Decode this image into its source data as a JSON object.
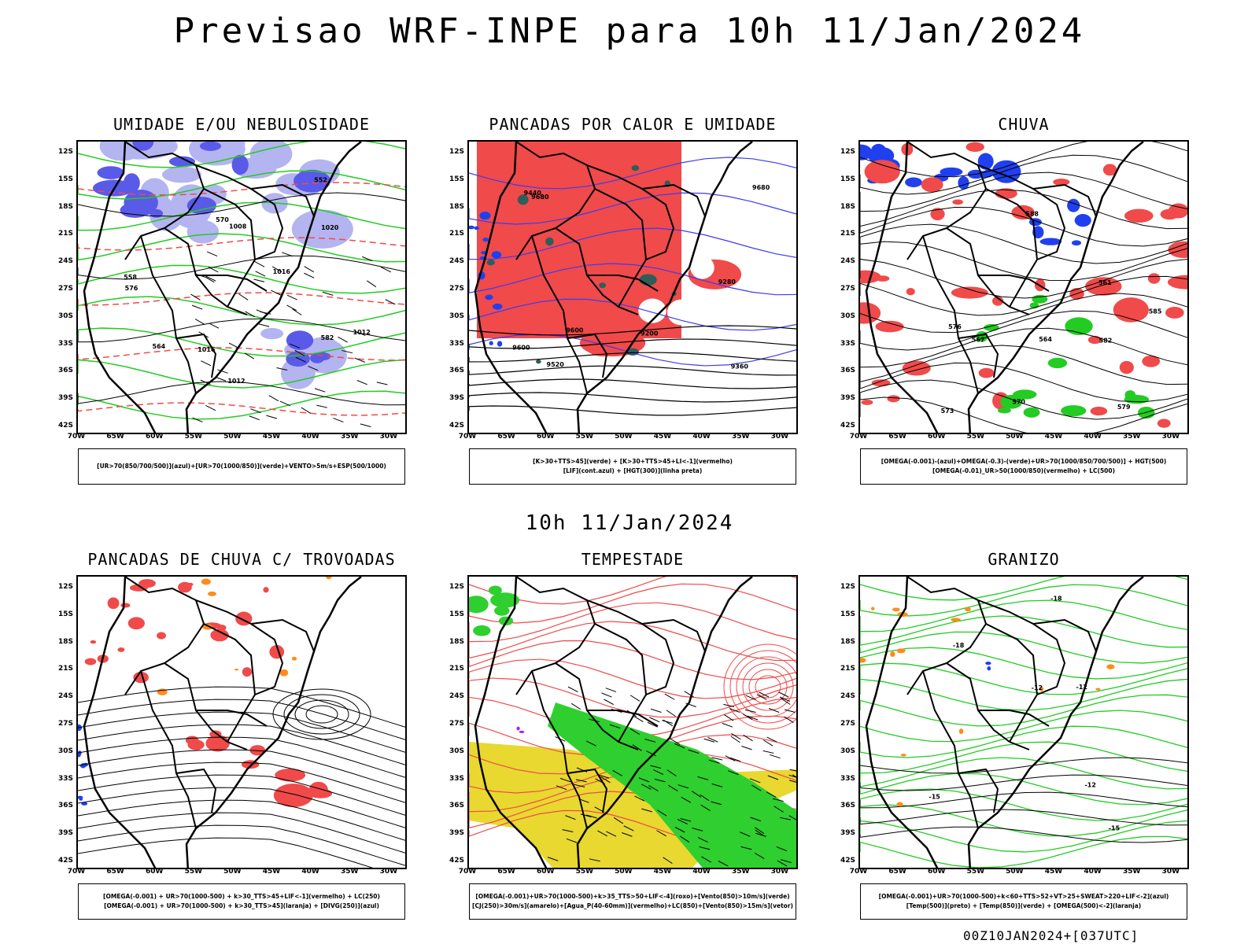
{
  "title": "Previsao WRF-INPE  para 10h 11/Jan/2024",
  "mid_title": "10h 11/Jan/2024",
  "footer": "00Z10JAN2024+[037UTC]",
  "latitude_labels": [
    "12S",
    "15S",
    "18S",
    "21S",
    "24S",
    "27S",
    "30S",
    "33S",
    "36S",
    "39S",
    "42S"
  ],
  "longitude_labels": [
    "70W",
    "65W",
    "60W",
    "55W",
    "50W",
    "45W",
    "40W",
    "35W",
    "30W"
  ],
  "colors": {
    "blue_fill": "#5a5ae8",
    "light_blue_fill": "#b4b4f0",
    "green": "#22cc22",
    "red": "#f04a4a",
    "yellow": "#e8d830",
    "dark_teal": "#2f5e58",
    "orange": "#ff8c1a",
    "purple": "#a020f0"
  },
  "panels": [
    {
      "title": "UMIDADE E/OU NEBULOSIDADE",
      "legend": [
        "[UR>70(850/700/500)](azul)+[UR>70(1000/850)](verde)+VENTO>5m/s+ESP(500/1000)"
      ],
      "contour_labels": [
        "1012",
        "1016",
        "1008",
        "1020",
        "1016",
        "1012",
        "576",
        "570",
        "582",
        "564",
        "558",
        "552"
      ]
    },
    {
      "title": "PANCADAS POR CALOR E UMIDADE",
      "legend": [
        "[K>30+TTS>45](verde) + [K>30+TTS>45+LI<-1](vermelho)",
        "[LIF](cont.azul) + [HGT(300)](linha preta)"
      ],
      "contour_labels": [
        "9600",
        "9680",
        "9520",
        "9440",
        "9360",
        "9280",
        "9200",
        "9600",
        "9680"
      ]
    },
    {
      "title": "CHUVA",
      "legend": [
        "[OMEGA(-0.001)-(azul)+OMEGA(-0.3)-(verde)+UR>70(1000/850/700/500)] + HGT(500)",
        "[OMEGA(-0.01)_UR>50(1000/850)(vermelho) + LC(500)"
      ],
      "contour_labels": [
        "588",
        "585",
        "582",
        "579",
        "576",
        "573",
        "570",
        "567",
        "564",
        "561"
      ]
    },
    {
      "title": "PANCADAS DE CHUVA C/ TROVOADAS",
      "legend": [
        "[OMEGA(-0.001) + UR>70(1000-500) + k>30_TTS>45+LIF<-1](vermelho) + LC(250)",
        "[OMEGA(-0.001) + UR>70(1000-500) + k>30_TTS>45](laranja) + [DIVG(250)](azul)"
      ],
      "contour_labels": []
    },
    {
      "title": "TEMPESTADE",
      "legend": [
        "[OMEGA(-0.001)+UR>70(1000-500)+k>35_TTS>50+LIF<-4](roxo)+[Vento(850)>10m/s](verde)",
        "[CJ(250)>30m/s](amarelo)+[Agua_P(40-60mm)](vermelho)+LC(850)+[Vento(850)>15m/s](vetor)"
      ],
      "contour_labels": []
    },
    {
      "title": "GRANIZO",
      "legend": [
        "[OMEGA(-0.001)+UR>70(1000-500)+k<60+TTS>52+VT>25+SWEAT>220+LIF<-2](azul)",
        "[Temp(500)](preto) + [Temp(850)](verde) + [OMEGA(500)<-2](laranja)"
      ],
      "contour_labels": [
        "-12",
        "-12",
        "-15",
        "-12",
        "-18",
        "-18",
        "-15"
      ]
    }
  ]
}
